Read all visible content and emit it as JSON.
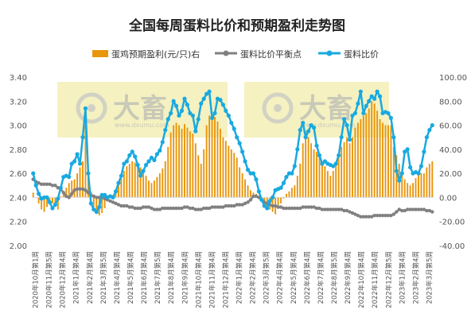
{
  "chart_data": {
    "type": "bar+line",
    "title": "全国每周蛋料比价和预期盈利走势图",
    "legend": [
      {
        "name": "蛋鸡预期盈利(元/只)右",
        "color": "#e8960c",
        "kind": "bar"
      },
      {
        "name": "蛋料比价平衡点",
        "color": "#808080",
        "kind": "line"
      },
      {
        "name": "蛋料比价",
        "color": "#19a9e1",
        "kind": "line"
      }
    ],
    "legend_position": "top",
    "left_axis": {
      "min": 2.0,
      "max": 3.4,
      "ticks": [
        "2.00",
        "2.20",
        "2.40",
        "2.60",
        "2.80",
        "3.00",
        "3.20",
        "3.40"
      ]
    },
    "right_axis": {
      "min": -40,
      "max": 100,
      "ticks": [
        "-40.00",
        "-20.00",
        "0.00",
        "20.00",
        "40.00",
        "60.00",
        "80.00",
        "100.00"
      ]
    },
    "x_tick_labels": [
      "2020年10月第1周",
      "2020年11月第5周",
      "2020年12月第4周",
      "2021年1月第4周",
      "2021年2月第4周",
      "2021年3月第5周",
      "2021年4月第4周",
      "2021年5月第4周",
      "2021年6月第4周",
      "2021年7月第5周",
      "2021年8月第4周",
      "2021年9月第4周",
      "2021年10月第4周",
      "2021年11月第4周",
      "2021年12月第4周",
      "2022年1月第4周",
      "2022年2月第4周",
      "2022年3月第5周",
      "2022年4月第4周",
      "2022年5月第4周",
      "2022年6月第4周",
      "2022年7月第4周",
      "2022年8月第5周",
      "2022年9月第4周",
      "2022年10月第4周",
      "2022年11月第4周",
      "2022年12月第5周",
      "2023年1月第4周",
      "2023年2月第4周",
      "2023年3月第5周"
    ],
    "profit": [
      4,
      0,
      -5,
      -10,
      -12,
      -8,
      -6,
      -5,
      -8,
      -10,
      1,
      5,
      8,
      12,
      14,
      15,
      20,
      25,
      30,
      60,
      20,
      5,
      -8,
      -12,
      -15,
      -13,
      -9,
      -2,
      0,
      2,
      5,
      10,
      16,
      22,
      26,
      28,
      30,
      29,
      27,
      25,
      22,
      18,
      14,
      12,
      14,
      17,
      20,
      24,
      30,
      42,
      54,
      60,
      62,
      60,
      57,
      61,
      58,
      55,
      53,
      45,
      35,
      28,
      40,
      60,
      68,
      67,
      67,
      63,
      57,
      50,
      47,
      43,
      40,
      37,
      33,
      25,
      20,
      15,
      10,
      6,
      4,
      3,
      1,
      0,
      -5,
      -8,
      -10,
      -12,
      -14,
      -9,
      -5,
      -1,
      3,
      5,
      8,
      10,
      18,
      28,
      45,
      55,
      50,
      45,
      40,
      38,
      34,
      30,
      26,
      22,
      18,
      22,
      28,
      35,
      42,
      46,
      50,
      45,
      50,
      58,
      62,
      65,
      68,
      70,
      74,
      80,
      78,
      72,
      65,
      62,
      60,
      60,
      60,
      42,
      35,
      28,
      20,
      15,
      12,
      10,
      12,
      16,
      20,
      20,
      20,
      25,
      28,
      30
    ],
    "breakeven": [
      2.55,
      2.53,
      2.52,
      2.51,
      2.51,
      2.51,
      2.51,
      2.5,
      2.5,
      2.48,
      2.47,
      2.44,
      2.41,
      2.4,
      2.43,
      2.46,
      2.47,
      2.47,
      2.47,
      2.46,
      2.44,
      2.42,
      2.41,
      2.4,
      2.4,
      2.4,
      2.39,
      2.38,
      2.37,
      2.36,
      2.35,
      2.34,
      2.33,
      2.33,
      2.33,
      2.32,
      2.32,
      2.31,
      2.31,
      2.31,
      2.32,
      2.32,
      2.32,
      2.31,
      2.3,
      2.3,
      2.3,
      2.31,
      2.31,
      2.31,
      2.31,
      2.31,
      2.31,
      2.31,
      2.31,
      2.32,
      2.32,
      2.31,
      2.31,
      2.3,
      2.3,
      2.3,
      2.31,
      2.31,
      2.31,
      2.32,
      2.32,
      2.32,
      2.32,
      2.32,
      2.33,
      2.33,
      2.33,
      2.33,
      2.34,
      2.34,
      2.34,
      2.35,
      2.36,
      2.38,
      2.41,
      2.41,
      2.4,
      2.38,
      2.36,
      2.35,
      2.34,
      2.33,
      2.33,
      2.32,
      2.32,
      2.31,
      2.31,
      2.31,
      2.31,
      2.31,
      2.31,
      2.31,
      2.32,
      2.32,
      2.32,
      2.32,
      2.32,
      2.31,
      2.31,
      2.3,
      2.3,
      2.3,
      2.3,
      2.3,
      2.3,
      2.3,
      2.3,
      2.29,
      2.29,
      2.28,
      2.27,
      2.26,
      2.25,
      2.24,
      2.24,
      2.24,
      2.24,
      2.24,
      2.25,
      2.25,
      2.25,
      2.25,
      2.25,
      2.25,
      2.25,
      2.26,
      2.28,
      2.3,
      2.29,
      2.29,
      2.3,
      2.3,
      2.3,
      2.3,
      2.3,
      2.3,
      2.3,
      2.29,
      2.29,
      2.28
    ],
    "ratio": [
      2.6,
      2.5,
      2.43,
      2.39,
      2.4,
      2.4,
      2.36,
      2.31,
      2.34,
      2.39,
      2.48,
      2.57,
      2.58,
      2.57,
      2.68,
      2.7,
      2.76,
      2.68,
      2.9,
      3.14,
      2.6,
      2.35,
      2.3,
      2.28,
      2.32,
      2.42,
      2.42,
      2.4,
      2.41,
      2.4,
      2.45,
      2.52,
      2.58,
      2.68,
      2.7,
      2.75,
      2.78,
      2.74,
      2.67,
      2.58,
      2.62,
      2.67,
      2.7,
      2.73,
      2.71,
      2.76,
      2.79,
      2.86,
      2.96,
      3.05,
      3.1,
      3.2,
      3.16,
      3.08,
      3.12,
      3.22,
      3.17,
      3.1,
      3.08,
      2.95,
      3.05,
      3.18,
      3.22,
      3.26,
      3.28,
      3.06,
      3.1,
      3.22,
      3.21,
      3.17,
      3.12,
      3.08,
      3.02,
      2.97,
      2.9,
      2.85,
      2.78,
      2.7,
      2.63,
      2.6,
      2.6,
      2.55,
      2.45,
      2.38,
      2.33,
      2.31,
      2.37,
      2.4,
      2.46,
      2.47,
      2.48,
      2.52,
      2.57,
      2.6,
      2.6,
      2.66,
      2.8,
      2.96,
      3.02,
      2.9,
      2.95,
      3.0,
      2.98,
      2.83,
      2.75,
      2.68,
      2.7,
      2.68,
      2.67,
      2.66,
      2.68,
      2.75,
      2.9,
      3.05,
      3.0,
      2.88,
      3.08,
      3.1,
      3.18,
      3.28,
      3.1,
      3.16,
      3.2,
      3.24,
      3.22,
      3.28,
      3.24,
      3.1,
      3.11,
      3.1,
      3.06,
      2.9,
      2.62,
      2.54,
      2.6,
      2.78,
      2.8,
      2.65,
      2.6,
      2.61,
      2.6,
      2.66,
      2.78,
      2.9,
      2.96,
      3.0
    ]
  }
}
